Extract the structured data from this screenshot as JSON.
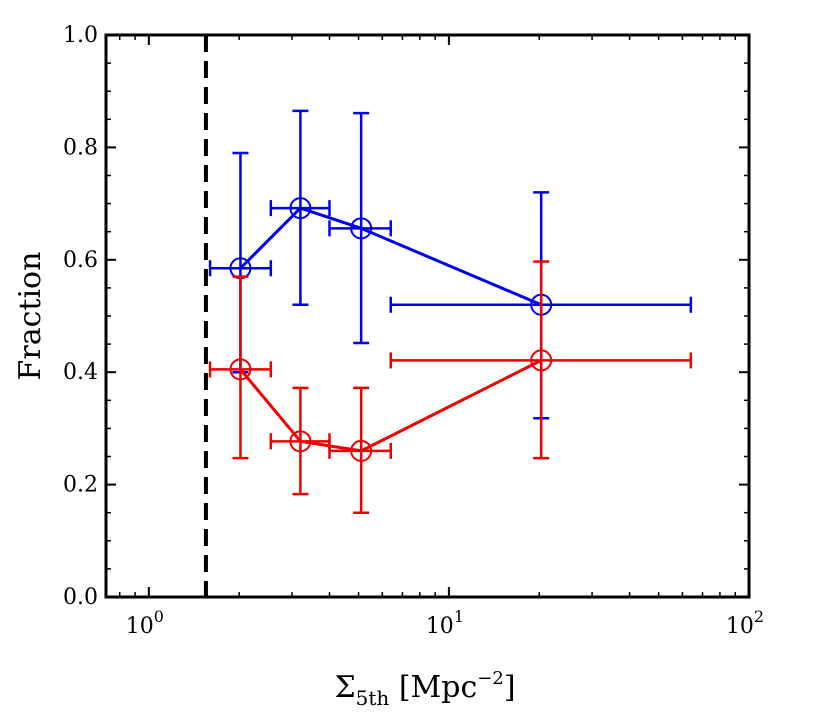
{
  "chart_data": {
    "type": "scatter",
    "title": "",
    "xlabel": {
      "symbol": "Σ",
      "subscript": "5th",
      "unit_open": " [Mpc",
      "unit_exponent": "−2",
      "unit_close": "]"
    },
    "ylabel": "Fraction",
    "xscale": "log",
    "xlim": [
      0.72,
      100
    ],
    "ylim": [
      0.0,
      1.0
    ],
    "x_ticks": [
      {
        "value": 1,
        "base": "10",
        "exp": "0"
      },
      {
        "value": 10,
        "base": "10",
        "exp": "1"
      },
      {
        "value": 100,
        "base": "10",
        "exp": "2"
      }
    ],
    "y_ticks": [
      {
        "value": 0.0,
        "label": "0.0"
      },
      {
        "value": 0.2,
        "label": "0.2"
      },
      {
        "value": 0.4,
        "label": "0.4"
      },
      {
        "value": 0.6,
        "label": "0.6"
      },
      {
        "value": 0.8,
        "label": "0.8"
      },
      {
        "value": 1.0,
        "label": "1.0"
      }
    ],
    "vline": {
      "x": 1.55,
      "style": "dashed",
      "color": "#000000"
    },
    "series": [
      {
        "name": "blue",
        "color": "#0000ee",
        "points": [
          {
            "x": 2.02,
            "y": 0.585,
            "xlo": 1.6,
            "xhi": 2.55,
            "ylo": 0.4,
            "yhi": 0.79
          },
          {
            "x": 3.2,
            "y": 0.692,
            "xlo": 2.55,
            "xhi": 4.0,
            "ylo": 0.52,
            "yhi": 0.865
          },
          {
            "x": 5.1,
            "y": 0.656,
            "xlo": 4.0,
            "xhi": 6.4,
            "ylo": 0.452,
            "yhi": 0.861
          },
          {
            "x": 20.3,
            "y": 0.52,
            "xlo": 6.4,
            "xhi": 64.0,
            "ylo": 0.318,
            "yhi": 0.72
          }
        ]
      },
      {
        "name": "red",
        "color": "#ee0000",
        "points": [
          {
            "x": 2.02,
            "y": 0.405,
            "xlo": 1.6,
            "xhi": 2.55,
            "ylo": 0.247,
            "yhi": 0.57
          },
          {
            "x": 3.2,
            "y": 0.277,
            "xlo": 2.55,
            "xhi": 4.0,
            "ylo": 0.183,
            "yhi": 0.372
          },
          {
            "x": 5.1,
            "y": 0.26,
            "xlo": 4.0,
            "xhi": 6.4,
            "ylo": 0.15,
            "yhi": 0.372
          },
          {
            "x": 20.3,
            "y": 0.421,
            "xlo": 6.4,
            "xhi": 64.0,
            "ylo": 0.247,
            "yhi": 0.597
          }
        ]
      }
    ]
  }
}
